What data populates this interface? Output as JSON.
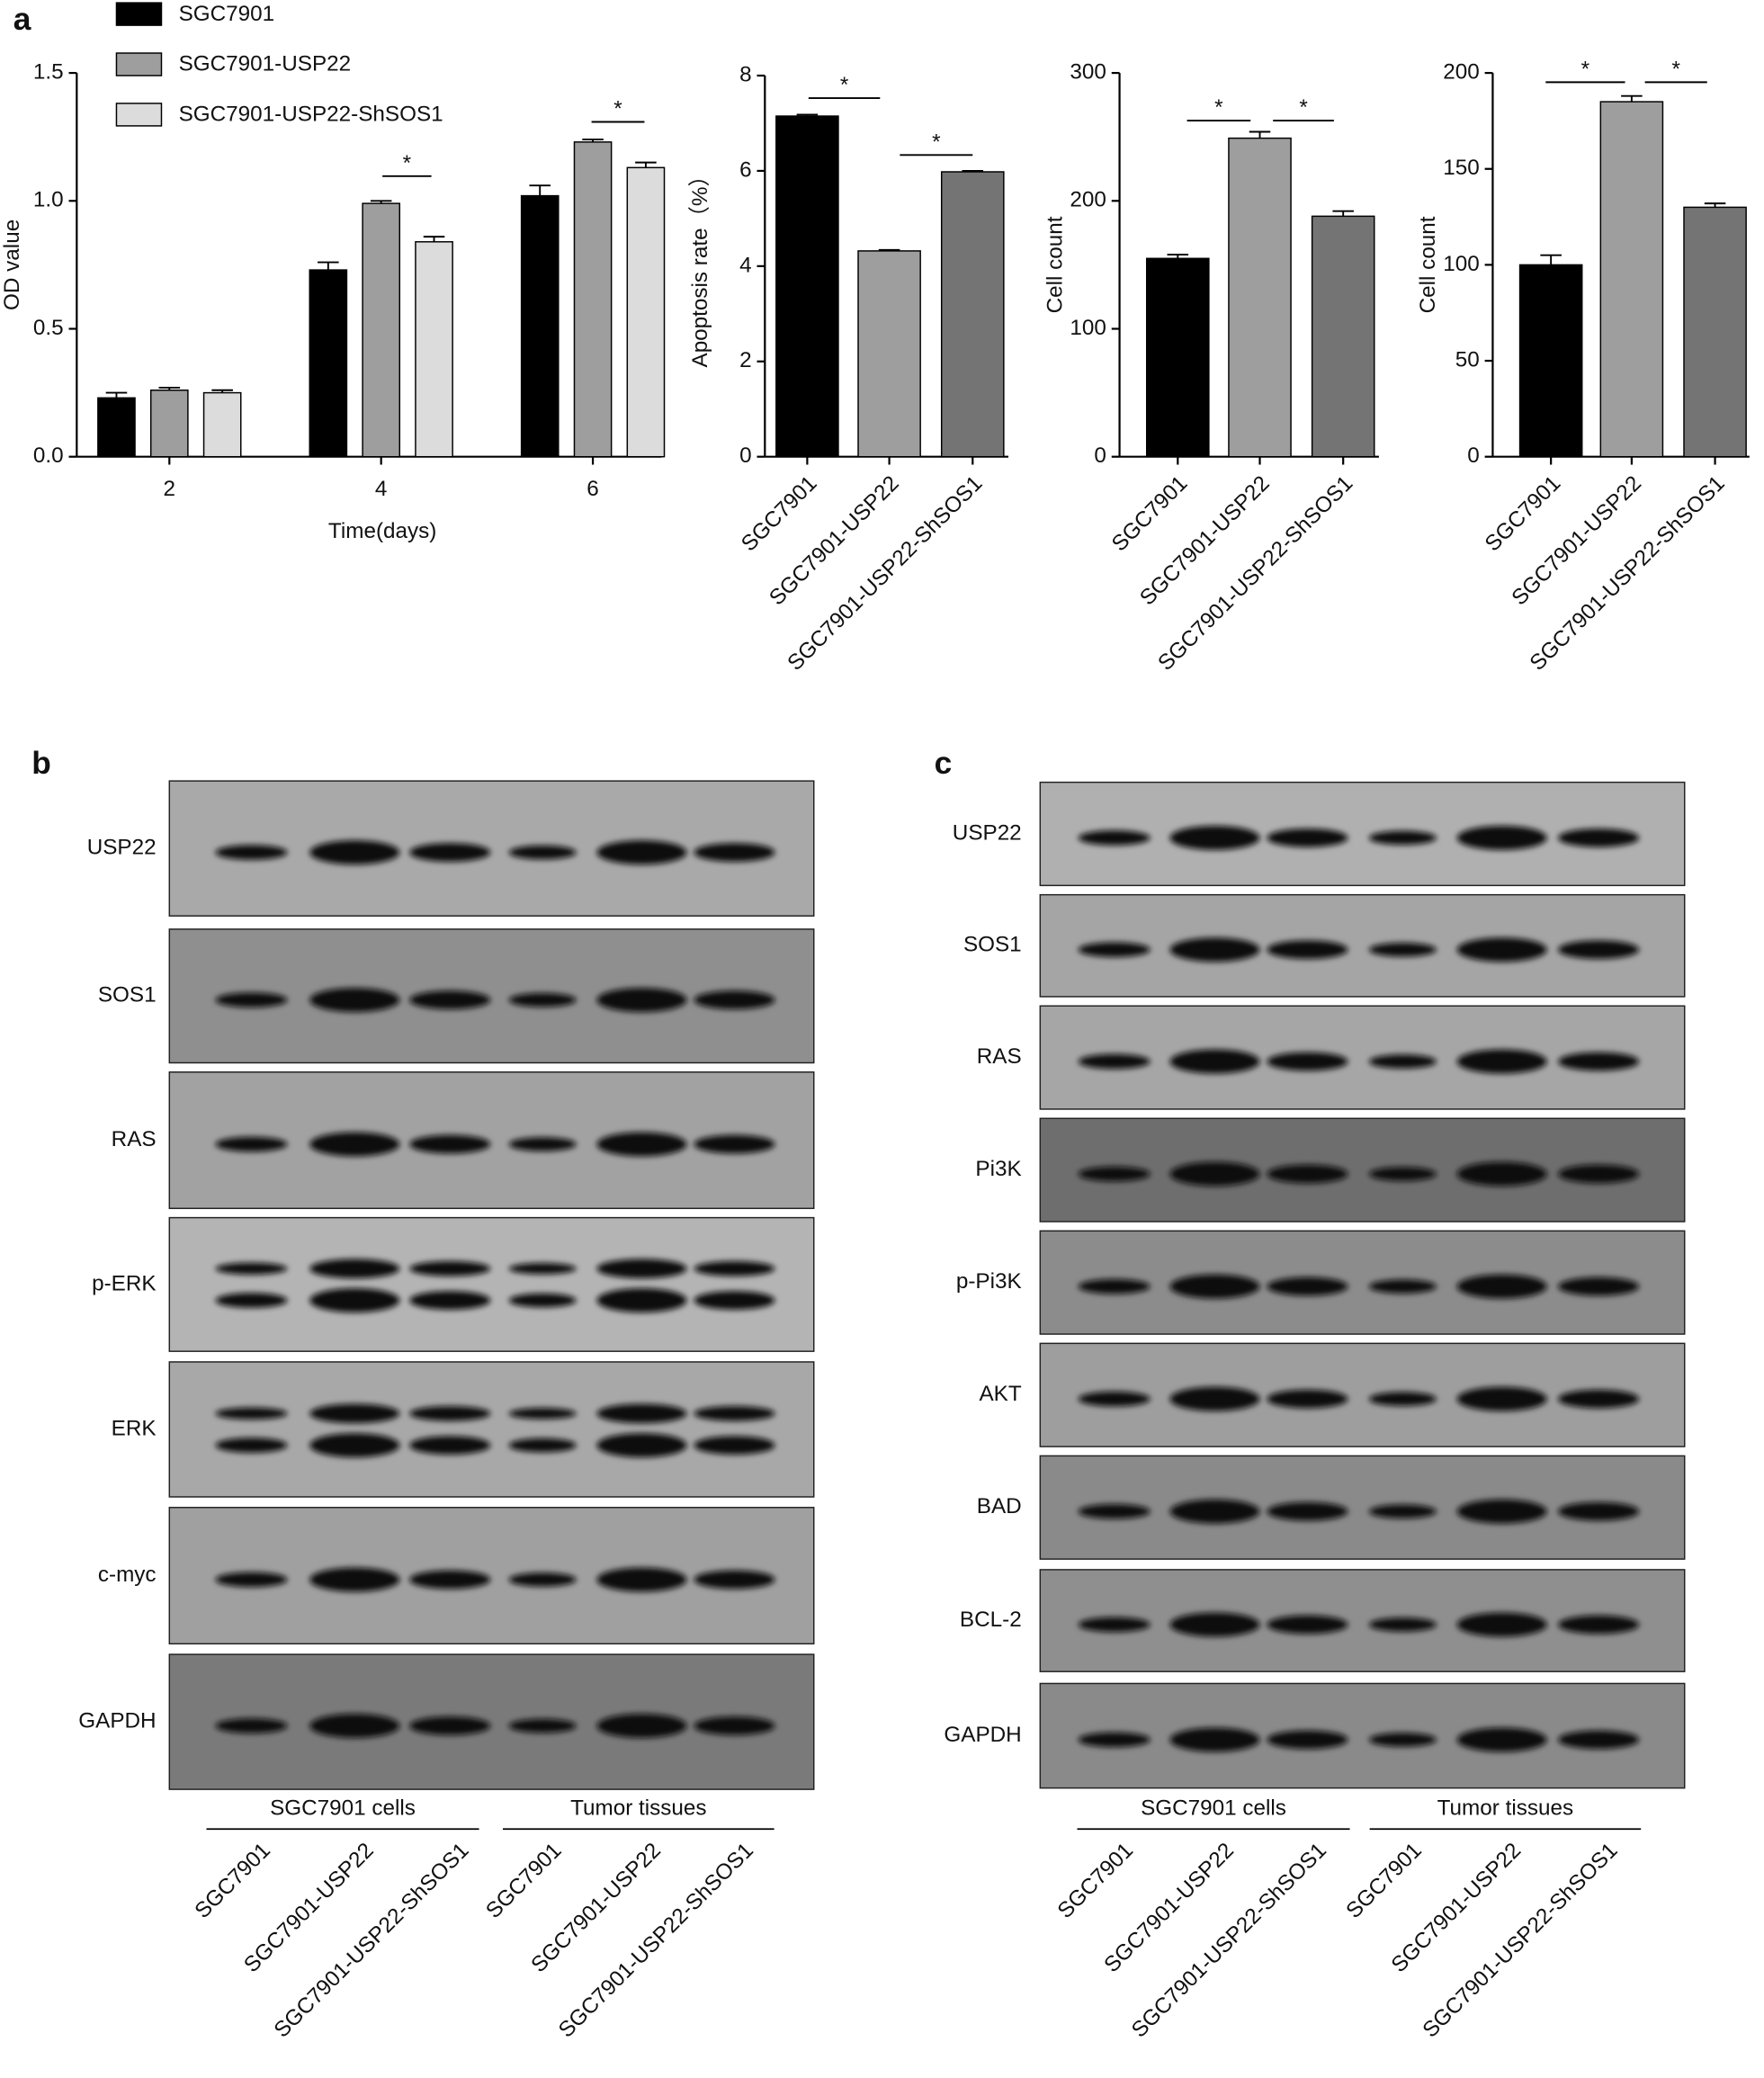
{
  "panels": [
    "a",
    "b",
    "c"
  ],
  "chart_data": [
    {
      "type": "grouped-bar",
      "xlabel": "Time(days)",
      "ylabel": "OD value",
      "categories": [
        "2",
        "4",
        "6"
      ],
      "series": [
        {
          "name": "SGC7901",
          "color": "#000000",
          "values": [
            0.23,
            0.73,
            1.02
          ],
          "errors": [
            0.02,
            0.03,
            0.04
          ]
        },
        {
          "name": "SGC7901-USP22",
          "color": "#9e9e9e",
          "values": [
            0.26,
            0.99,
            1.23
          ],
          "errors": [
            0.01,
            0.01,
            0.01
          ]
        },
        {
          "name": "SGC7901-USP22-ShSOS1",
          "color": "#dcdcdc",
          "values": [
            0.25,
            0.84,
            1.13
          ],
          "errors": [
            0.01,
            0.02,
            0.02
          ]
        }
      ],
      "ylim": [
        0,
        1.5
      ],
      "yticks": [
        {
          "value": 0,
          "label": "0.0"
        },
        {
          "value": 0.5,
          "label": "0.5"
        },
        {
          "value": 1,
          "label": "1.0"
        },
        {
          "value": 1.5,
          "label": "1.5"
        }
      ],
      "annotations": [
        "*",
        "*"
      ]
    },
    {
      "type": "bar",
      "ylabel": "Apoptosis rate（%）",
      "categories": [
        "SGC7901",
        "SGC7901-USP22",
        "SGC7901-USP22-ShSOS1"
      ],
      "values": [
        7.15,
        4.32,
        5.98
      ],
      "errors": [
        0.03,
        0.02,
        0.02
      ],
      "colors": [
        "#000000",
        "#9e9e9e",
        "#747474"
      ],
      "ylim": [
        0,
        8
      ],
      "yticks": [
        0,
        2,
        4,
        6,
        8
      ],
      "annotations": [
        "*",
        "*"
      ]
    },
    {
      "type": "bar",
      "ylabel": "Cell count",
      "categories": [
        "SGC7901",
        "SGC7901-USP22",
        "SGC7901-USP22-ShSOS1"
      ],
      "values": [
        155,
        249,
        188
      ],
      "errors": [
        3,
        5,
        4
      ],
      "colors": [
        "#000000",
        "#9e9e9e",
        "#747474"
      ],
      "ylim": [
        0,
        300
      ],
      "yticks": [
        0,
        100,
        200,
        300
      ],
      "annotations": [
        "*",
        "*"
      ]
    },
    {
      "type": "bar",
      "ylabel": "Cell count",
      "categories": [
        "SGC7901",
        "SGC7901-USP22",
        "SGC7901-USP22-ShSOS1"
      ],
      "values": [
        100,
        185,
        130
      ],
      "errors": [
        5,
        3,
        2
      ],
      "colors": [
        "#000000",
        "#9e9e9e",
        "#747474"
      ],
      "ylim": [
        0,
        200
      ],
      "yticks": [
        0,
        50,
        100,
        150,
        200
      ],
      "annotations": [
        "*",
        "*"
      ]
    }
  ],
  "blots": {
    "b": {
      "proteins": [
        "USP22",
        "SOS1",
        "RAS",
        "p-ERK",
        "ERK",
        "c-myc",
        "GAPDH"
      ],
      "groups": [
        "SGC7901 cells",
        "Tumor tissues"
      ],
      "lanes": [
        "SGC7901",
        "SGC7901-USP22",
        "SGC7901-USP22-ShSOS1",
        "SGC7901",
        "SGC7901-USP22",
        "SGC7901-USP22-ShSOS1"
      ]
    },
    "c": {
      "proteins": [
        "USP22",
        "SOS1",
        "RAS",
        "Pi3K",
        "p-Pi3K",
        "AKT",
        "BAD",
        "BCL-2",
        "GAPDH"
      ],
      "groups": [
        "SGC7901 cells",
        "Tumor tissues"
      ],
      "lanes": [
        "SGC7901",
        "SGC7901-USP22",
        "SGC7901-USP22-ShSOS1",
        "SGC7901",
        "SGC7901-USP22",
        "SGC7901-USP22-ShSOS1"
      ]
    }
  }
}
